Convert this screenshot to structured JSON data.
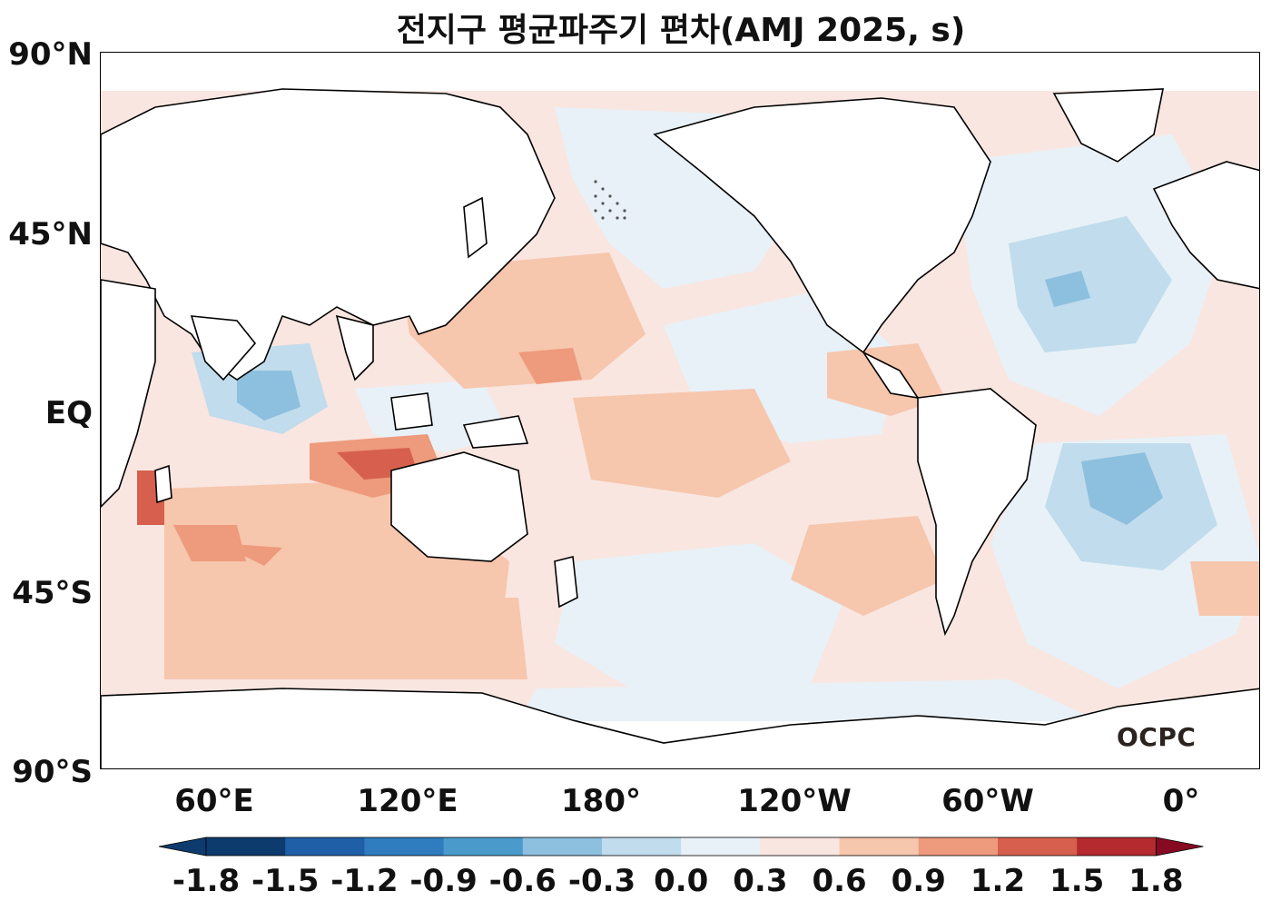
{
  "title": "전지구 평균파주기 편차(AMJ 2025, s)",
  "lat_labels": [
    "90°N",
    "45°N",
    "EQ",
    "45°S",
    "90°S"
  ],
  "lon_labels": [
    "60°E",
    "120°E",
    "180°",
    "120°W",
    "60°W",
    "0°"
  ],
  "colorbar": {
    "labels": [
      "-1.8",
      "-1.5",
      "-1.2",
      "-0.9",
      "-0.6",
      "-0.3",
      "0.0",
      "0.3",
      "0.6",
      "0.9",
      "1.2",
      "1.5",
      "1.8"
    ],
    "colors": [
      "#0d3b6e",
      "#1f5fa8",
      "#2f7cbf",
      "#4a9bcc",
      "#8dbfdf",
      "#c1dcec",
      "#e8f1f7",
      "#f9e6e0",
      "#f6c6ad",
      "#ee9a7c",
      "#d6604d",
      "#b52a2f",
      "#860a22"
    ]
  },
  "logo": "OCPC",
  "colors": {
    "ocean_pos_light": "#f9e6e0",
    "ocean_pos_mid": "#f6c6ad",
    "ocean_pos_high": "#ee9a7c",
    "ocean_pos_strong": "#d6604d",
    "ocean_neg_light": "#e8f1f7",
    "ocean_neg_mid": "#c1dcec",
    "ocean_neg_high": "#8dbfdf",
    "land": "#ffffff",
    "coast": "#000000"
  }
}
